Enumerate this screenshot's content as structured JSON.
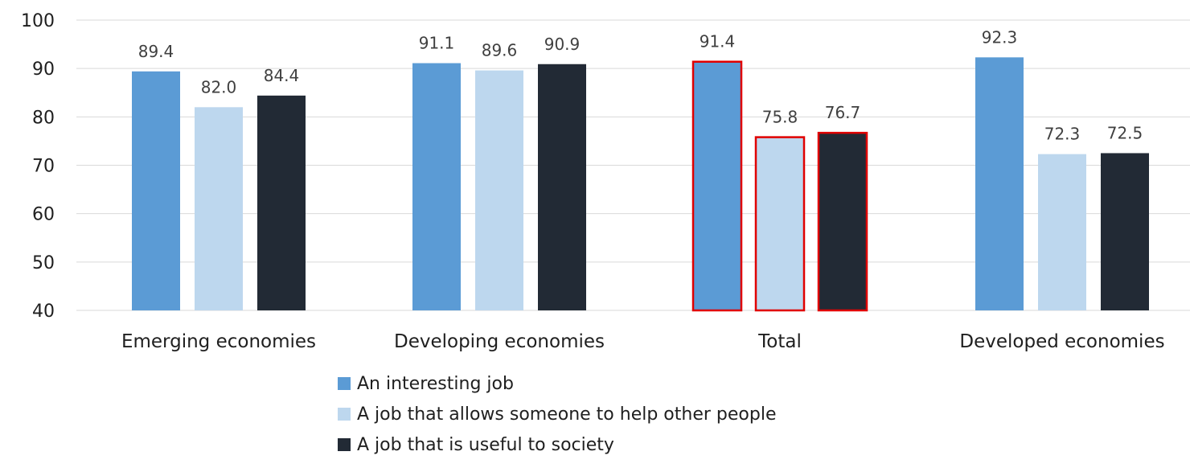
{
  "chart_data": {
    "type": "bar",
    "categories": [
      "Emerging economies",
      "Developing economies",
      "Total",
      "Developed economies"
    ],
    "series": [
      {
        "name": "An interesting job",
        "color": "#5B9BD5",
        "values": [
          89.4,
          91.1,
          91.4,
          92.3
        ],
        "labels": [
          "89.4",
          "91.1",
          "91.4",
          "92.3"
        ]
      },
      {
        "name": "A job that allows someone to help other people",
        "color": "#BDD7EE",
        "values": [
          82.0,
          89.6,
          75.8,
          72.3
        ],
        "labels": [
          "82.0",
          "89.6",
          "75.8",
          "72.3"
        ]
      },
      {
        "name": "A job that is useful to society",
        "color": "#222A35",
        "values": [
          84.4,
          90.9,
          76.7,
          72.5
        ],
        "labels": [
          "84.4",
          "90.9",
          "76.7",
          "72.5"
        ]
      }
    ],
    "y_ticks": [
      "40",
      "50",
      "60",
      "70",
      "80",
      "90",
      "100"
    ],
    "ylim": [
      40,
      100
    ],
    "highlight_category": "Total",
    "highlight_color": "#E00000",
    "gridline_color": "#D9D9D9",
    "legend_position": "bottom-left",
    "xlabel": "",
    "ylabel": ""
  }
}
